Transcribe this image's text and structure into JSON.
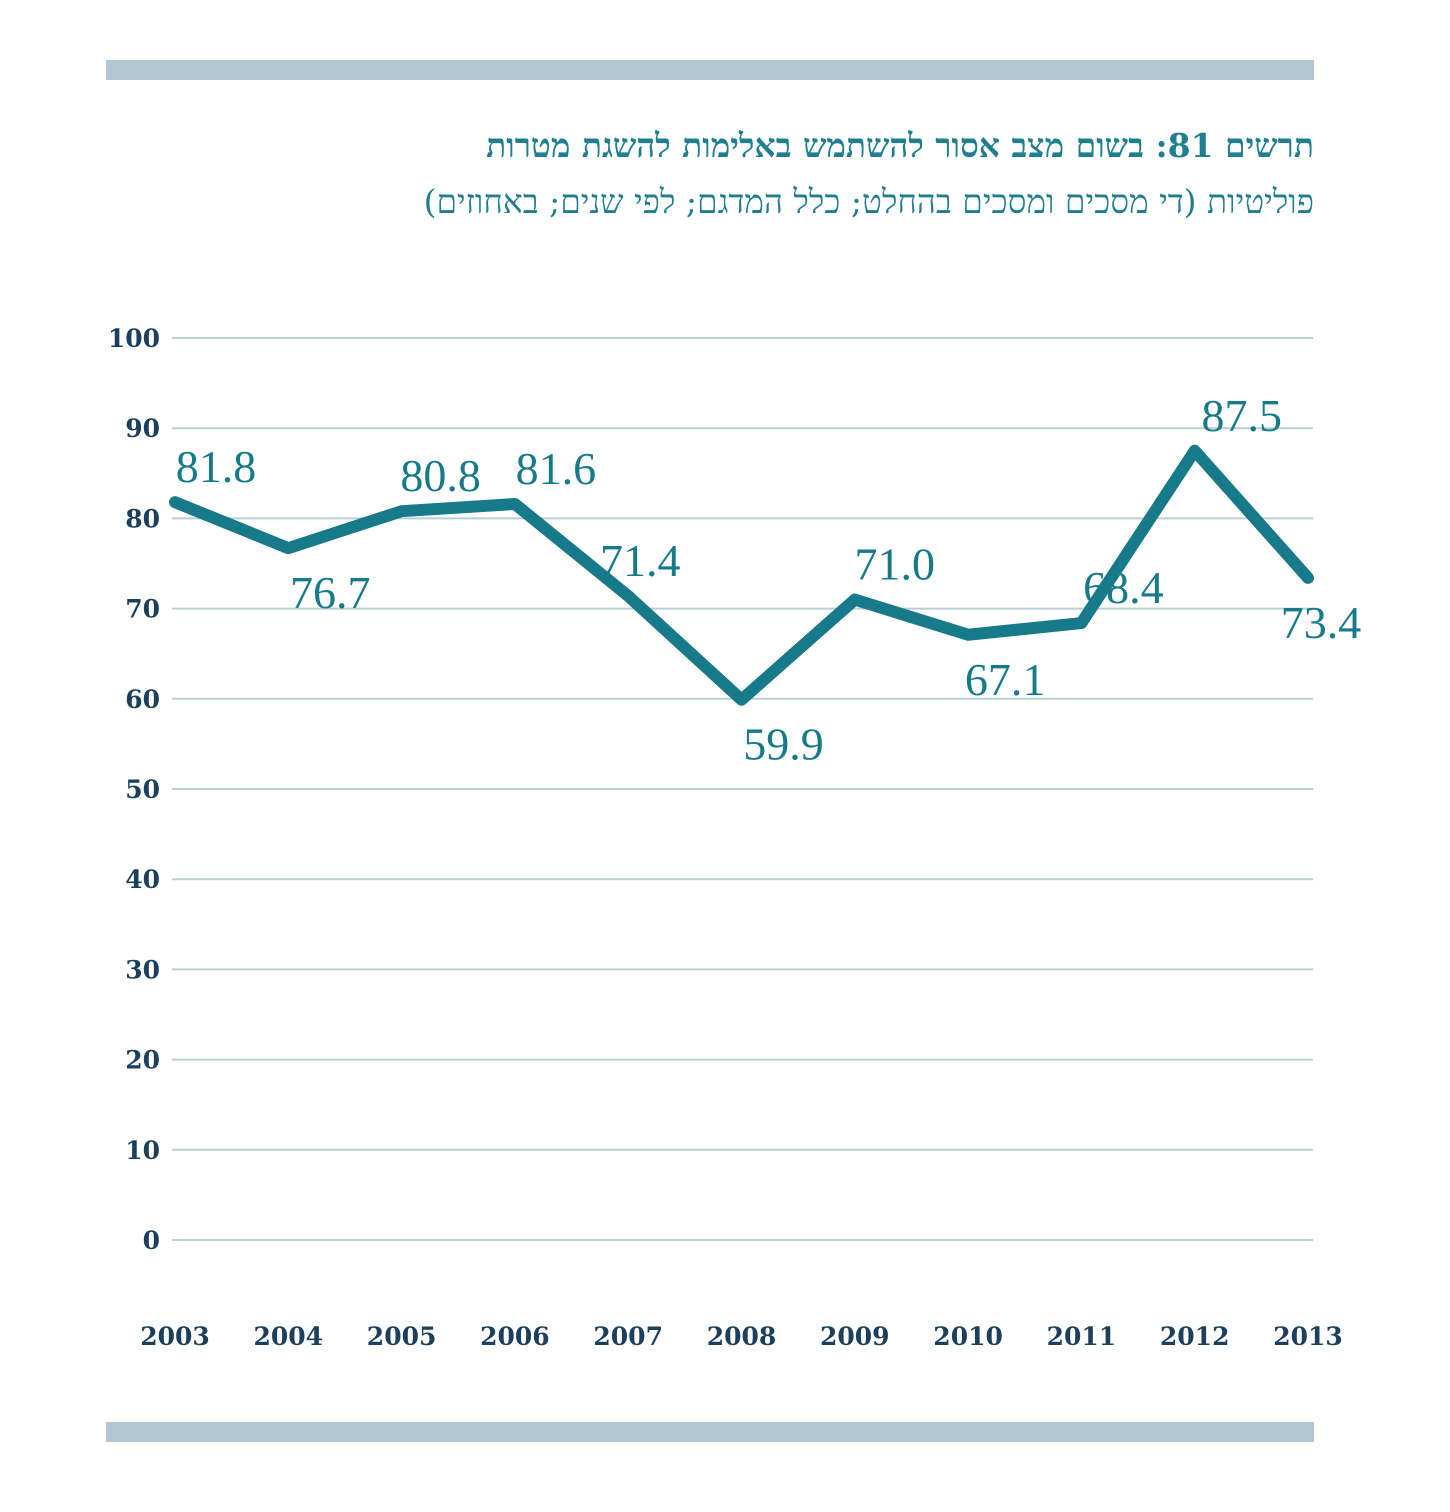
{
  "title": {
    "line1": "תרשים 81: בשום מצב אסור להשתמש באלימות להשגת מטרות",
    "line2": "פוליטיות (די מסכים ומסכים בהחלט; כלל המדגם; לפי שנים; באחוזים)"
  },
  "colors": {
    "line": "#167a8a",
    "rule": "#b2c7d1",
    "grid": "#b9cfd8",
    "axis_text": "#1c3f5e",
    "title": "#1f7f8f"
  },
  "chart_data": {
    "type": "line",
    "categories": [
      "2003",
      "2004",
      "2005",
      "2006",
      "2007",
      "2008",
      "2009",
      "2010",
      "2011",
      "2012",
      "2013"
    ],
    "series": [
      {
        "values": [
          81.8,
          76.7,
          80.8,
          81.6,
          71.4,
          59.9,
          71.0,
          67.1,
          68.4,
          87.5,
          73.4
        ],
        "labels": [
          "81.8",
          "76.7",
          "80.8",
          "81.6",
          "71.4",
          "59.9",
          "71.0",
          "67.1",
          "68.4",
          "87.5",
          "73.4"
        ]
      }
    ],
    "ylim": [
      0,
      100
    ],
    "yticks": [
      0,
      10,
      20,
      30,
      40,
      50,
      60,
      70,
      80,
      90,
      100
    ],
    "grid": true,
    "legend": "none"
  }
}
